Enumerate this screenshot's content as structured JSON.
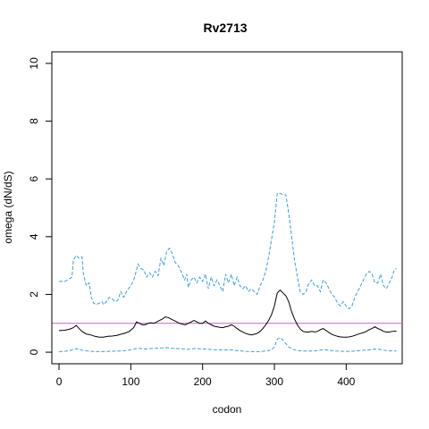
{
  "chart_data": {
    "type": "line",
    "title": "Rv2713",
    "xlabel": "codon",
    "ylabel": "omega (dN/dS)",
    "xlim": [
      -10,
      478
    ],
    "ylim": [
      -0.4,
      10.4
    ],
    "xticks": [
      0,
      100,
      200,
      300,
      400
    ],
    "yticks": [
      0,
      2,
      4,
      6,
      8,
      10
    ],
    "reference_line": {
      "y": 1,
      "color": "#c266c2"
    },
    "series": [
      {
        "role": "upper",
        "style": "dashed",
        "color": "#3d9fdc",
        "points": [
          [
            0,
            2.45
          ],
          [
            8,
            2.45
          ],
          [
            15,
            2.55
          ],
          [
            18,
            2.6
          ],
          [
            20,
            3.2
          ],
          [
            24,
            3.35
          ],
          [
            28,
            3.25
          ],
          [
            32,
            3.3
          ],
          [
            34,
            2.7
          ],
          [
            38,
            2.3
          ],
          [
            42,
            2.4
          ],
          [
            45,
            1.9
          ],
          [
            48,
            1.7
          ],
          [
            52,
            1.65
          ],
          [
            56,
            1.7
          ],
          [
            60,
            1.75
          ],
          [
            62,
            1.65
          ],
          [
            66,
            1.75
          ],
          [
            70,
            1.9
          ],
          [
            74,
            1.85
          ],
          [
            78,
            1.75
          ],
          [
            82,
            1.8
          ],
          [
            86,
            2.1
          ],
          [
            90,
            1.9
          ],
          [
            95,
            2.15
          ],
          [
            100,
            2.3
          ],
          [
            104,
            2.5
          ],
          [
            108,
            2.85
          ],
          [
            110,
            3.05
          ],
          [
            114,
            2.9
          ],
          [
            118,
            2.85
          ],
          [
            122,
            2.6
          ],
          [
            126,
            2.75
          ],
          [
            130,
            2.6
          ],
          [
            134,
            2.8
          ],
          [
            138,
            2.65
          ],
          [
            142,
            3.25
          ],
          [
            146,
            3.0
          ],
          [
            150,
            3.5
          ],
          [
            154,
            3.6
          ],
          [
            158,
            3.4
          ],
          [
            162,
            3.1
          ],
          [
            166,
            3.0
          ],
          [
            170,
            2.8
          ],
          [
            175,
            2.5
          ],
          [
            178,
            2.7
          ],
          [
            180,
            2.25
          ],
          [
            184,
            2.5
          ],
          [
            188,
            2.6
          ],
          [
            192,
            2.4
          ],
          [
            196,
            2.6
          ],
          [
            200,
            2.45
          ],
          [
            204,
            2.7
          ],
          [
            208,
            2.2
          ],
          [
            212,
            2.6
          ],
          [
            216,
            2.3
          ],
          [
            220,
            2.5
          ],
          [
            224,
            2.3
          ],
          [
            228,
            2.1
          ],
          [
            232,
            2.7
          ],
          [
            236,
            2.4
          ],
          [
            240,
            2.7
          ],
          [
            244,
            2.3
          ],
          [
            248,
            2.6
          ],
          [
            252,
            2.3
          ],
          [
            256,
            2.2
          ],
          [
            260,
            2.3
          ],
          [
            264,
            2.1
          ],
          [
            268,
            2.2
          ],
          [
            272,
            2.1
          ],
          [
            276,
            2.0
          ],
          [
            280,
            2.3
          ],
          [
            284,
            2.5
          ],
          [
            288,
            2.8
          ],
          [
            292,
            3.3
          ],
          [
            296,
            3.9
          ],
          [
            300,
            4.5
          ],
          [
            304,
            5.5
          ],
          [
            308,
            5.5
          ],
          [
            312,
            5.45
          ],
          [
            316,
            5.45
          ],
          [
            320,
            4.8
          ],
          [
            324,
            4.0
          ],
          [
            328,
            3.2
          ],
          [
            332,
            2.6
          ],
          [
            336,
            2.1
          ],
          [
            340,
            2.0
          ],
          [
            344,
            2.1
          ],
          [
            348,
            2.4
          ],
          [
            352,
            2.5
          ],
          [
            356,
            2.3
          ],
          [
            360,
            2.3
          ],
          [
            364,
            2.1
          ],
          [
            368,
            2.5
          ],
          [
            372,
            2.4
          ],
          [
            376,
            2.2
          ],
          [
            380,
            2.0
          ],
          [
            384,
            1.9
          ],
          [
            388,
            1.7
          ],
          [
            392,
            1.6
          ],
          [
            396,
            1.75
          ],
          [
            400,
            1.6
          ],
          [
            404,
            1.5
          ],
          [
            408,
            1.6
          ],
          [
            412,
            1.9
          ],
          [
            416,
            2.1
          ],
          [
            420,
            2.3
          ],
          [
            424,
            2.5
          ],
          [
            428,
            2.7
          ],
          [
            432,
            2.8
          ],
          [
            436,
            2.7
          ],
          [
            440,
            2.4
          ],
          [
            444,
            2.4
          ],
          [
            448,
            2.7
          ],
          [
            452,
            2.3
          ],
          [
            456,
            2.2
          ],
          [
            460,
            2.4
          ],
          [
            464,
            2.6
          ],
          [
            467,
            2.85
          ],
          [
            470,
            2.9
          ]
        ]
      },
      {
        "role": "estimate",
        "style": "solid",
        "color": "#000000",
        "points": [
          [
            0,
            0.75
          ],
          [
            8,
            0.76
          ],
          [
            15,
            0.8
          ],
          [
            20,
            0.85
          ],
          [
            24,
            0.93
          ],
          [
            28,
            0.82
          ],
          [
            32,
            0.72
          ],
          [
            38,
            0.63
          ],
          [
            44,
            0.6
          ],
          [
            50,
            0.55
          ],
          [
            56,
            0.52
          ],
          [
            62,
            0.52
          ],
          [
            68,
            0.55
          ],
          [
            74,
            0.56
          ],
          [
            80,
            0.58
          ],
          [
            86,
            0.62
          ],
          [
            92,
            0.66
          ],
          [
            98,
            0.72
          ],
          [
            104,
            0.85
          ],
          [
            108,
            1.05
          ],
          [
            112,
            1.0
          ],
          [
            116,
            0.95
          ],
          [
            120,
            0.95
          ],
          [
            124,
            1.0
          ],
          [
            128,
            1.02
          ],
          [
            132,
            1.0
          ],
          [
            136,
            1.05
          ],
          [
            140,
            1.1
          ],
          [
            144,
            1.15
          ],
          [
            148,
            1.22
          ],
          [
            152,
            1.2
          ],
          [
            156,
            1.15
          ],
          [
            160,
            1.1
          ],
          [
            164,
            1.05
          ],
          [
            168,
            1.0
          ],
          [
            172,
            0.97
          ],
          [
            176,
            0.95
          ],
          [
            180,
            1.0
          ],
          [
            184,
            1.05
          ],
          [
            188,
            1.1
          ],
          [
            192,
            1.05
          ],
          [
            196,
            1.0
          ],
          [
            200,
            1.0
          ],
          [
            204,
            1.08
          ],
          [
            208,
            1.0
          ],
          [
            212,
            0.95
          ],
          [
            216,
            0.9
          ],
          [
            220,
            0.88
          ],
          [
            224,
            0.86
          ],
          [
            228,
            0.85
          ],
          [
            232,
            0.88
          ],
          [
            236,
            0.9
          ],
          [
            240,
            0.95
          ],
          [
            244,
            0.9
          ],
          [
            248,
            0.82
          ],
          [
            252,
            0.75
          ],
          [
            256,
            0.7
          ],
          [
            260,
            0.65
          ],
          [
            264,
            0.62
          ],
          [
            268,
            0.6
          ],
          [
            272,
            0.62
          ],
          [
            276,
            0.65
          ],
          [
            280,
            0.72
          ],
          [
            284,
            0.82
          ],
          [
            288,
            0.95
          ],
          [
            292,
            1.1
          ],
          [
            296,
            1.3
          ],
          [
            300,
            1.6
          ],
          [
            304,
            2.05
          ],
          [
            308,
            2.15
          ],
          [
            312,
            2.05
          ],
          [
            316,
            1.95
          ],
          [
            320,
            1.75
          ],
          [
            324,
            1.4
          ],
          [
            328,
            1.15
          ],
          [
            332,
            0.95
          ],
          [
            336,
            0.8
          ],
          [
            340,
            0.72
          ],
          [
            344,
            0.7
          ],
          [
            348,
            0.7
          ],
          [
            352,
            0.72
          ],
          [
            356,
            0.7
          ],
          [
            360,
            0.72
          ],
          [
            364,
            0.78
          ],
          [
            368,
            0.82
          ],
          [
            372,
            0.75
          ],
          [
            376,
            0.68
          ],
          [
            380,
            0.62
          ],
          [
            384,
            0.58
          ],
          [
            388,
            0.55
          ],
          [
            392,
            0.53
          ],
          [
            396,
            0.52
          ],
          [
            400,
            0.52
          ],
          [
            404,
            0.53
          ],
          [
            408,
            0.55
          ],
          [
            412,
            0.58
          ],
          [
            416,
            0.62
          ],
          [
            420,
            0.65
          ],
          [
            424,
            0.68
          ],
          [
            428,
            0.72
          ],
          [
            432,
            0.78
          ],
          [
            436,
            0.82
          ],
          [
            440,
            0.88
          ],
          [
            444,
            0.82
          ],
          [
            448,
            0.78
          ],
          [
            452,
            0.72
          ],
          [
            456,
            0.7
          ],
          [
            460,
            0.7
          ],
          [
            464,
            0.72
          ],
          [
            468,
            0.73
          ],
          [
            470,
            0.73
          ]
        ]
      },
      {
        "role": "lower",
        "style": "dashed",
        "color": "#3d9fdc",
        "points": [
          [
            0,
            0.02
          ],
          [
            8,
            0.03
          ],
          [
            15,
            0.06
          ],
          [
            20,
            0.1
          ],
          [
            24,
            0.12
          ],
          [
            28,
            0.1
          ],
          [
            32,
            0.07
          ],
          [
            40,
            0.04
          ],
          [
            50,
            0.02
          ],
          [
            60,
            0.02
          ],
          [
            70,
            0.03
          ],
          [
            80,
            0.04
          ],
          [
            90,
            0.05
          ],
          [
            100,
            0.08
          ],
          [
            106,
            0.12
          ],
          [
            112,
            0.13
          ],
          [
            120,
            0.11
          ],
          [
            130,
            0.13
          ],
          [
            140,
            0.14
          ],
          [
            150,
            0.16
          ],
          [
            160,
            0.13
          ],
          [
            170,
            0.12
          ],
          [
            180,
            0.1
          ],
          [
            190,
            0.13
          ],
          [
            200,
            0.11
          ],
          [
            210,
            0.1
          ],
          [
            220,
            0.08
          ],
          [
            230,
            0.08
          ],
          [
            240,
            0.08
          ],
          [
            250,
            0.05
          ],
          [
            260,
            0.03
          ],
          [
            270,
            0.02
          ],
          [
            280,
            0.02
          ],
          [
            290,
            0.05
          ],
          [
            296,
            0.08
          ],
          [
            300,
            0.18
          ],
          [
            304,
            0.45
          ],
          [
            308,
            0.5
          ],
          [
            312,
            0.42
          ],
          [
            316,
            0.3
          ],
          [
            320,
            0.18
          ],
          [
            326,
            0.1
          ],
          [
            332,
            0.06
          ],
          [
            340,
            0.04
          ],
          [
            350,
            0.04
          ],
          [
            360,
            0.06
          ],
          [
            368,
            0.09
          ],
          [
            376,
            0.07
          ],
          [
            386,
            0.04
          ],
          [
            396,
            0.03
          ],
          [
            406,
            0.03
          ],
          [
            416,
            0.05
          ],
          [
            426,
            0.07
          ],
          [
            436,
            0.09
          ],
          [
            440,
            0.11
          ],
          [
            446,
            0.1
          ],
          [
            452,
            0.07
          ],
          [
            460,
            0.05
          ],
          [
            470,
            0.04
          ]
        ]
      }
    ]
  }
}
